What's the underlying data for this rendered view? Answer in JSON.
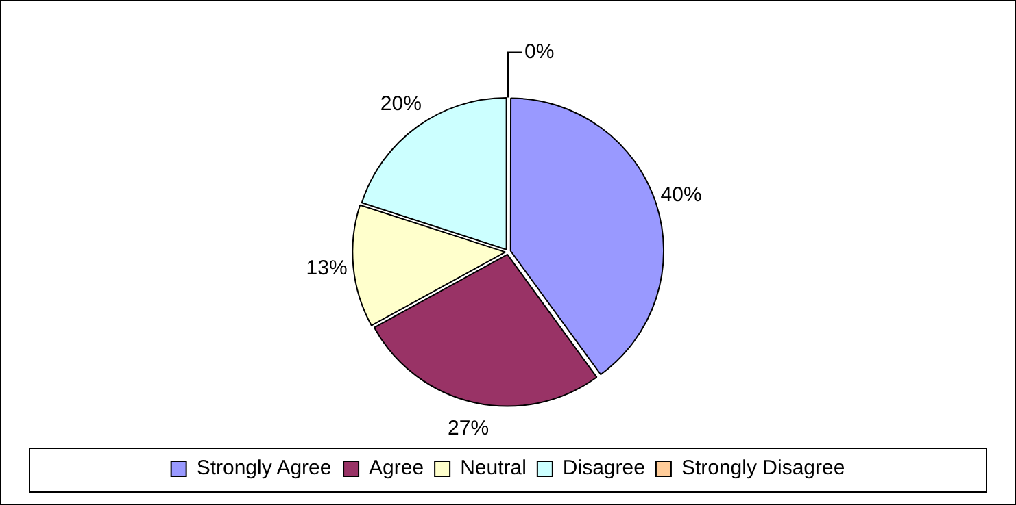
{
  "chart_data": {
    "type": "pie",
    "categories": [
      "Strongly Agree",
      "Agree",
      "Neutral",
      "Disagree",
      "Strongly Disagree"
    ],
    "values": [
      40,
      27,
      13,
      20,
      0
    ],
    "colors": [
      "#9999ff",
      "#993366",
      "#ffffcc",
      "#ccffff",
      "#ffcc99"
    ],
    "value_labels": [
      "40%",
      "27%",
      "13%",
      "20%",
      "0%"
    ],
    "legend": "bottom"
  }
}
